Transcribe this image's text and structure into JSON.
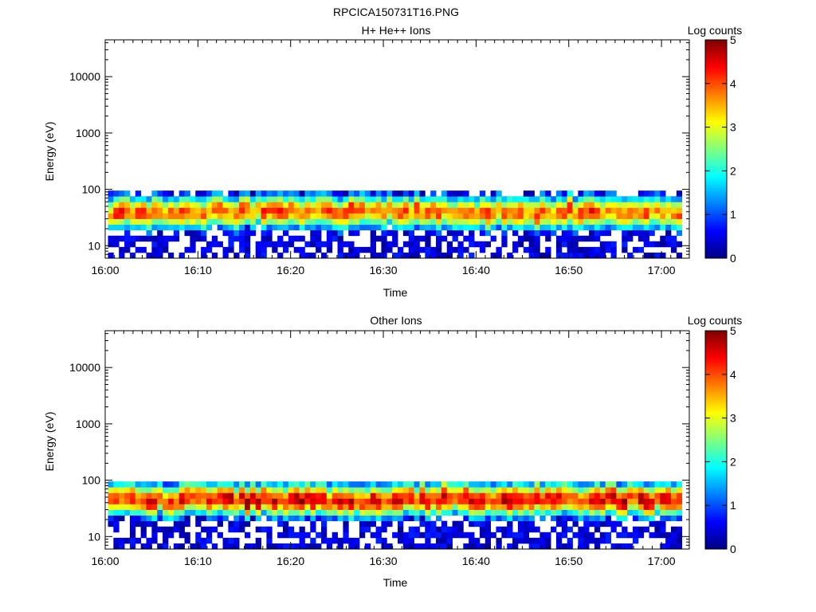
{
  "figure": {
    "title": "RPCICA150731T16.PNG"
  },
  "colorbar": {
    "title": "Log counts",
    "min": 0,
    "max": 5,
    "ticks": [
      "0",
      "1",
      "2",
      "3",
      "4",
      "5"
    ]
  },
  "chart_data": [
    {
      "type": "heatmap",
      "title": "H+ He++ Ions",
      "xlabel": "Time",
      "ylabel": "Energy (eV)",
      "x_ticks": [
        "16:00",
        "16:10",
        "16:20",
        "16:30",
        "16:40",
        "16:50",
        "17:00"
      ],
      "y_ticks": [
        "10",
        "100",
        "1000",
        "10000"
      ],
      "y_scale": "log",
      "ylim": [
        6,
        45000
      ],
      "xlim_minutes": [
        0,
        63
      ],
      "data_span_minutes": [
        0.3,
        62.2
      ],
      "energy_range_eV": [
        6,
        95
      ],
      "peak_energy_eV": 40,
      "peak_log_counts": [
        3.4,
        4.4
      ],
      "time_bins": 105,
      "energy_bins": 12
    },
    {
      "type": "heatmap",
      "title": "Other Ions",
      "xlabel": "Time",
      "ylabel": "Energy (eV)",
      "x_ticks": [
        "16:00",
        "16:10",
        "16:20",
        "16:30",
        "16:40",
        "16:50",
        "17:00"
      ],
      "y_ticks": [
        "10",
        "100",
        "1000",
        "10000"
      ],
      "y_scale": "log",
      "ylim": [
        6,
        45000
      ],
      "xlim_minutes": [
        0,
        63
      ],
      "data_span_minutes": [
        0.3,
        62.2
      ],
      "energy_range_eV": [
        6,
        95
      ],
      "peak_energy_eV": 45,
      "peak_log_counts": [
        3.8,
        4.9
      ],
      "time_bins": 105,
      "energy_bins": 12
    }
  ]
}
